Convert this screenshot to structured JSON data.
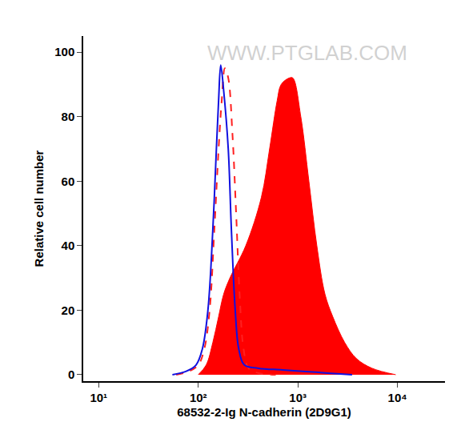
{
  "chart_data": {
    "type": "line",
    "x_label": "68532-2-Ig N-cadherin (2D9G1)",
    "y_label": "Relative cell number",
    "annotations": [
      "WWW.PTGLAB.COM"
    ],
    "log": "x",
    "grid": false,
    "xlim": [
      7,
      30000
    ],
    "xticks": [
      {
        "value": 10,
        "label": "10¹"
      },
      {
        "value": 100,
        "label": "10²"
      },
      {
        "value": 1000,
        "label": "10³"
      },
      {
        "value": 10000,
        "label": "10⁴"
      }
    ],
    "ylim": [
      -2,
      105
    ],
    "yticks": [
      0,
      20,
      40,
      60,
      80,
      100
    ],
    "series": [
      {
        "type": "area",
        "color": "#ff0000",
        "line_style": "solid",
        "x": [
          100,
          120,
          140,
          160,
          180,
          208,
          300,
          430,
          520,
          620,
          680,
          820,
          890,
          1070,
          1290,
          1550,
          1870,
          2240,
          2950,
          3870,
          5550,
          9600
        ],
        "values": [
          0,
          3,
          10,
          18,
          25,
          30,
          40,
          55,
          70,
          85,
          90,
          92,
          92,
          80,
          60,
          40,
          25,
          18,
          10,
          5,
          2,
          0
        ]
      },
      {
        "type": "line",
        "color": "#ff2020",
        "line_style": "dashed",
        "x": [
          60,
          80,
          100,
          115,
          130,
          145,
          160,
          172,
          185,
          200,
          220,
          240,
          260,
          285,
          320,
          400,
          600
        ],
        "values": [
          0,
          1,
          3,
          8,
          20,
          45,
          70,
          85,
          95,
          92,
          75,
          50,
          25,
          8,
          2,
          0.5,
          0
        ]
      },
      {
        "type": "line",
        "color": "#1010e0",
        "line_style": "solid",
        "x": [
          55,
          75,
          95,
          110,
          125,
          140,
          152,
          160,
          168,
          180,
          200,
          215,
          235,
          255,
          290,
          400,
          700,
          1200,
          2000,
          3500
        ],
        "values": [
          0,
          1,
          3,
          8,
          20,
          45,
          70,
          85,
          96,
          88,
          70,
          45,
          20,
          8,
          3,
          2,
          1.5,
          1,
          0.5,
          0
        ]
      }
    ]
  }
}
